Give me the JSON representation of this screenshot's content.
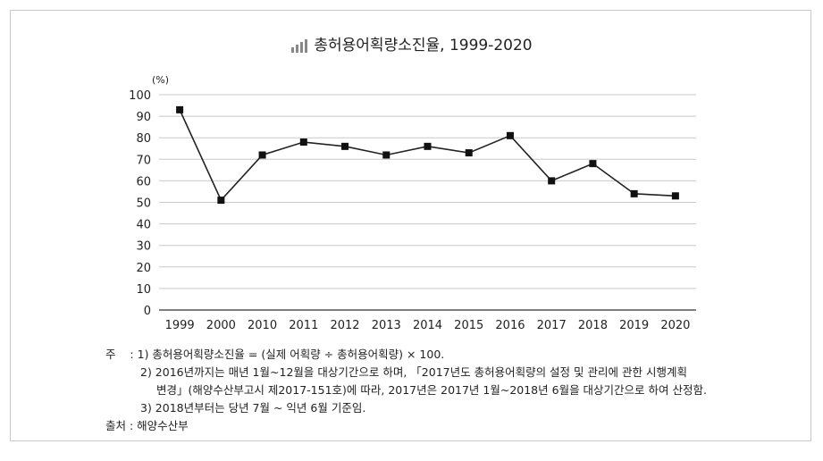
{
  "title": "총허용어획량소진율, 1999-2020",
  "icon": "bar-chart-icon",
  "chart_data": {
    "type": "line",
    "title": "총허용어획량소진율, 1999-2020",
    "ylabel": "(%)",
    "xlabel": "",
    "ylim": [
      0,
      100
    ],
    "yticks": [
      0,
      10,
      20,
      30,
      40,
      50,
      60,
      70,
      80,
      90,
      100
    ],
    "categories": [
      "1999",
      "2000",
      "2010",
      "2011",
      "2012",
      "2013",
      "2014",
      "2015",
      "2016",
      "2017",
      "2018",
      "2019",
      "2020"
    ],
    "series": [
      {
        "values": [
          93,
          51,
          72,
          78,
          76,
          72,
          76,
          73,
          81,
          60,
          68,
          54,
          53
        ]
      }
    ],
    "grid": "horizontal",
    "marker": "square"
  },
  "notes": {
    "label": "주",
    "sep": ":",
    "items": [
      "1) 총허용어획량소진율 = (실제 어획량 ÷ 총허용어획량) × 100.",
      "2) 2016년까지는 매년 1월~12월을 대상기간으로 하며, 「2017년도 총허용어획량의 설정 및 관리에 관한 시행계획",
      "변경」(해양수산부고시 제2017-151호)에 따라, 2017년은 2017년 1월~2018년 6월을 대상기간으로 하여 산정함.",
      "3) 2018년부터는 당년 7월 ~ 익년 6월 기준임."
    ],
    "source": "출처 : 해양수산부"
  }
}
